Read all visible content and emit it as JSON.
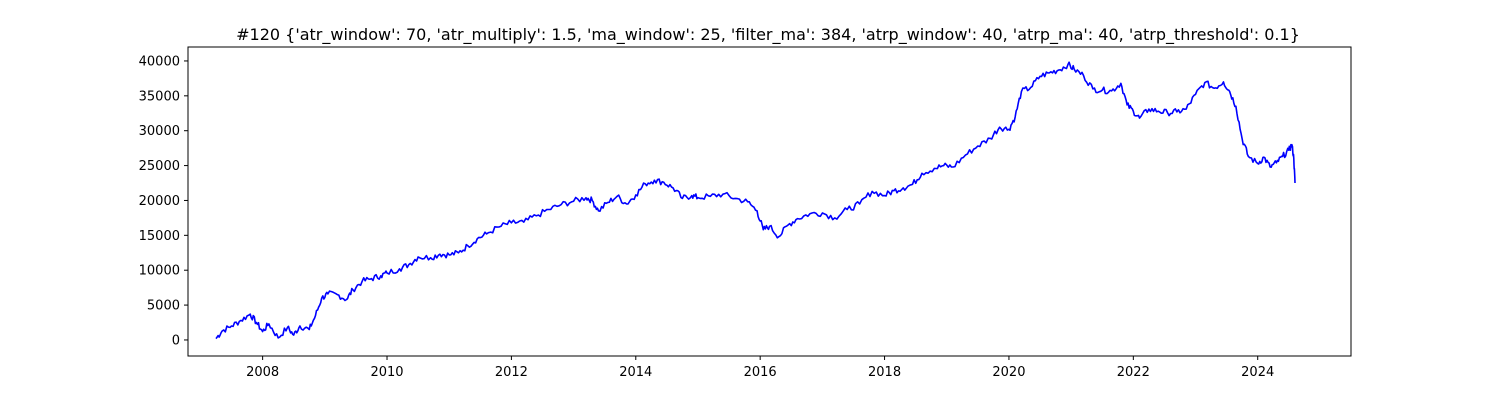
{
  "chart_data": {
    "type": "line",
    "title": "#120 {'atr_window': 70, 'atr_multiply': 1.5, 'ma_window': 25, 'filter_ma': 384, 'atrp_window': 40, 'atrp_ma': 40, 'atrp_threshold': 0.1}",
    "xlabel": "",
    "ylabel": "",
    "xlim": [
      2006.8,
      2025.5
    ],
    "ylim": [
      -2300,
      42000
    ],
    "x_ticks": [
      2008,
      2010,
      2012,
      2014,
      2016,
      2018,
      2020,
      2022,
      2024
    ],
    "y_ticks": [
      0,
      5000,
      10000,
      15000,
      20000,
      25000,
      30000,
      35000,
      40000
    ],
    "grid": false,
    "series": [
      {
        "color": "#0000ff",
        "x": [
          2007.25,
          2007.35,
          2007.5,
          2007.65,
          2007.8,
          2007.9,
          2008.0,
          2008.1,
          2008.25,
          2008.4,
          2008.5,
          2008.6,
          2008.75,
          2008.85,
          2008.95,
          2009.05,
          2009.2,
          2009.35,
          2009.45,
          2009.6,
          2009.75,
          2009.9,
          2010.0,
          2010.2,
          2010.35,
          2010.5,
          2010.7,
          2010.85,
          2011.0,
          2011.15,
          2011.3,
          2011.45,
          2011.6,
          2011.8,
          2012.0,
          2012.2,
          2012.4,
          2012.6,
          2012.8,
          2013.0,
          2013.2,
          2013.3,
          2013.4,
          2013.55,
          2013.7,
          2013.85,
          2014.0,
          2014.15,
          2014.3,
          2014.45,
          2014.6,
          2014.75,
          2014.9,
          2015.0,
          2015.2,
          2015.4,
          2015.6,
          2015.8,
          2015.95,
          2016.05,
          2016.15,
          2016.3,
          2016.45,
          2016.6,
          2016.8,
          2017.0,
          2017.2,
          2017.4,
          2017.6,
          2017.8,
          2018.0,
          2018.15,
          2018.3,
          2018.45,
          2018.6,
          2018.8,
          2018.95,
          2019.1,
          2019.3,
          2019.5,
          2019.7,
          2019.85,
          2020.0,
          2020.1,
          2020.2,
          2020.35,
          2020.5,
          2020.65,
          2020.8,
          2020.95,
          2021.05,
          2021.2,
          2021.35,
          2021.5,
          2021.65,
          2021.8,
          2021.9,
          2022.0,
          2022.1,
          2022.25,
          2022.4,
          2022.55,
          2022.7,
          2022.85,
          2023.0,
          2023.15,
          2023.3,
          2023.45,
          2023.55,
          2023.65,
          2023.75,
          2023.85,
          2024.0,
          2024.1,
          2024.2,
          2024.3,
          2024.4,
          2024.5,
          2024.55,
          2024.58,
          2024.6
        ],
        "y": [
          200,
          1300,
          2000,
          2800,
          3700,
          2500,
          1200,
          2300,
          300,
          1800,
          700,
          2000,
          1500,
          3500,
          6000,
          6600,
          6500,
          5800,
          7200,
          8400,
          8800,
          9200,
          9600,
          10200,
          10800,
          11900,
          11800,
          12300,
          12200,
          12500,
          13500,
          14500,
          15200,
          16200,
          16800,
          16900,
          17800,
          18700,
          19400,
          19900,
          20400,
          20000,
          18500,
          19700,
          20600,
          19500,
          20800,
          22400,
          22900,
          22600,
          21800,
          20300,
          20700,
          20400,
          20600,
          20900,
          20300,
          19800,
          18500,
          15800,
          16300,
          14800,
          16500,
          17400,
          18100,
          18200,
          17500,
          18700,
          19500,
          21300,
          20700,
          21400,
          21800,
          22300,
          23900,
          24600,
          25000,
          24800,
          26500,
          27800,
          28900,
          30500,
          30200,
          32000,
          35600,
          36200,
          37800,
          38300,
          38700,
          39500,
          38800,
          37900,
          36000,
          35800,
          35700,
          36800,
          33700,
          32800,
          31800,
          33100,
          32800,
          32600,
          32700,
          33100,
          35200,
          36900,
          36100,
          37000,
          35600,
          33500,
          28800,
          26300,
          25300,
          26200,
          24800,
          25400,
          26300,
          27200,
          28000,
          26000,
          22500
        ]
      }
    ]
  }
}
